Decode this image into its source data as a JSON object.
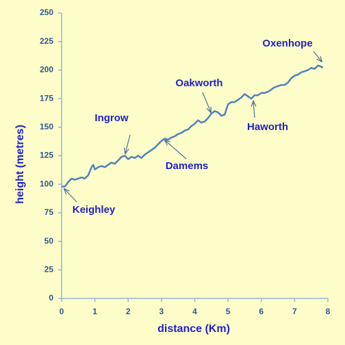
{
  "chart_data": {
    "type": "line",
    "xlabel": "distance  (Km)",
    "ylabel": "height  (metres)",
    "x": [
      0,
      0.1,
      0.2,
      0.3,
      0.4,
      0.5,
      0.6,
      0.7,
      0.8,
      0.9,
      0.95,
      1.0,
      1.1,
      1.2,
      1.3,
      1.4,
      1.5,
      1.6,
      1.7,
      1.8,
      1.9,
      2.0,
      2.1,
      2.2,
      2.3,
      2.4,
      2.5,
      2.6,
      2.7,
      2.8,
      2.9,
      3.0,
      3.1,
      3.2,
      3.3,
      3.4,
      3.5,
      3.6,
      3.7,
      3.8,
      3.9,
      4.0,
      4.1,
      4.2,
      4.3,
      4.4,
      4.5,
      4.6,
      4.7,
      4.8,
      4.9,
      5.0,
      5.1,
      5.2,
      5.3,
      5.4,
      5.5,
      5.6,
      5.7,
      5.8,
      5.9,
      6.0,
      6.1,
      6.2,
      6.3,
      6.4,
      6.5,
      6.6,
      6.7,
      6.8,
      6.9,
      7.0,
      7.1,
      7.2,
      7.3,
      7.4,
      7.5,
      7.6,
      7.7,
      7.8,
      7.85
    ],
    "values": [
      98,
      98,
      102,
      105,
      104,
      105,
      106,
      105,
      108,
      115,
      117,
      113,
      115,
      116,
      115,
      117,
      119,
      118,
      121,
      124,
      125,
      122,
      124,
      123,
      125,
      123,
      126,
      128,
      130,
      132,
      135,
      138,
      140,
      139,
      141,
      142,
      144,
      145,
      147,
      148,
      151,
      153,
      156,
      154,
      155,
      158,
      162,
      164,
      163,
      160,
      161,
      170,
      172,
      172,
      174,
      176,
      179,
      177,
      175,
      178,
      178,
      180,
      180,
      181,
      183,
      185,
      186,
      187,
      187,
      189,
      193,
      195,
      196,
      198,
      199,
      200,
      202,
      201,
      204,
      203,
      202
    ],
    "color": "#4f81bd",
    "xlim": [
      0,
      8
    ],
    "xticks": [
      0,
      1,
      2,
      3,
      4,
      5,
      6,
      7,
      8
    ],
    "ylim": [
      0,
      250
    ],
    "yticks": [
      0,
      25,
      50,
      75,
      100,
      125,
      150,
      175,
      200,
      225,
      250
    ],
    "grid": false,
    "annotations": [
      "Keighley",
      "Ingrow",
      "Damems",
      "Oakworth",
      "Haworth",
      "Oxenhope"
    ]
  }
}
